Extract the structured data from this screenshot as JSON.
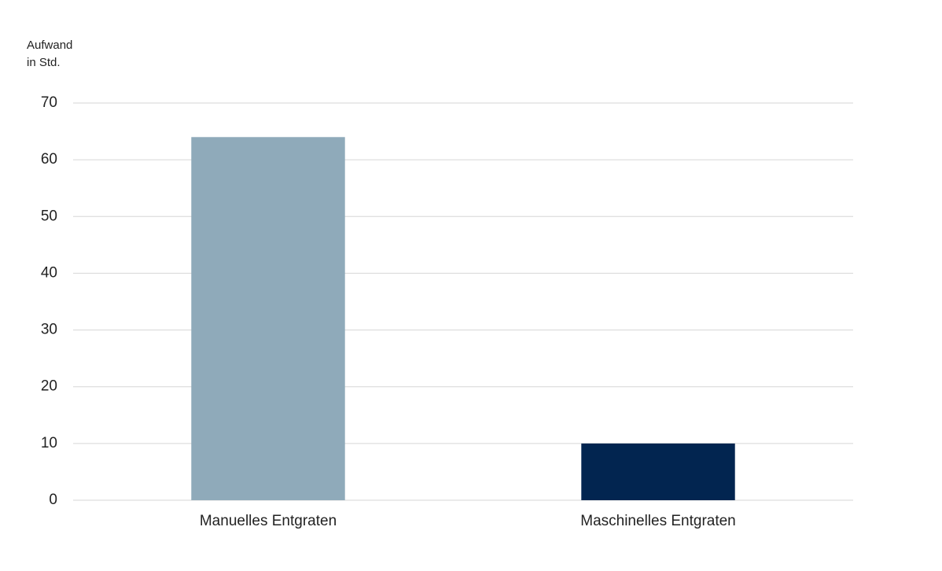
{
  "chart_data": {
    "type": "bar",
    "y_label": [
      "Aufwand",
      "in Std."
    ],
    "categories": [
      "Manuelles Entgraten",
      "Maschinelles Entgraten"
    ],
    "values": [
      64,
      10
    ],
    "colors": [
      "#8faaba",
      "#022550"
    ],
    "ylim": [
      0,
      70
    ],
    "yticks": [
      0,
      10,
      20,
      30,
      40,
      50,
      60,
      70
    ],
    "grid": true
  }
}
